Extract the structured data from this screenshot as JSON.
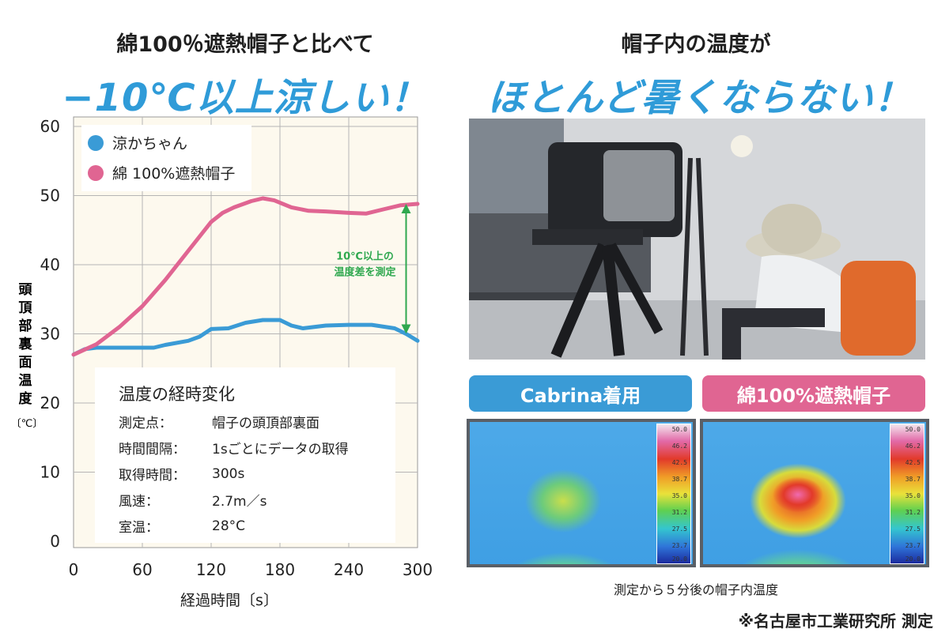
{
  "left_heading": {
    "line1": "綿100％遮熱帽子と比べて",
    "line2": "−10℃以上涼しい！"
  },
  "right_heading": {
    "line1": "帽子内の温度が",
    "line2": "ほとんど暑くならない！"
  },
  "chart_data": {
    "type": "line",
    "xlabel": "経過時間〔s〕",
    "ylabel": "頭頂部裏面温度",
    "ylabel_unit": "〔℃〕",
    "xlim": [
      0,
      300
    ],
    "ylim": [
      0,
      60
    ],
    "xticks": [
      "0",
      "60",
      "120",
      "180",
      "240",
      "300"
    ],
    "yticks": [
      "0",
      "10",
      "20",
      "30",
      "40",
      "50",
      "60"
    ],
    "grid": true,
    "legend_position": "top-left",
    "series": [
      {
        "name": "涼かちゃん",
        "color": "#3a9bd6",
        "x": [
          0,
          10,
          20,
          40,
          60,
          70,
          80,
          100,
          110,
          120,
          135,
          150,
          165,
          180,
          190,
          200,
          220,
          240,
          260,
          280,
          290,
          300
        ],
        "y": [
          27,
          27.8,
          28,
          28,
          28,
          28,
          28.4,
          29,
          29.6,
          30.7,
          30.8,
          31.6,
          32,
          32,
          31.2,
          30.8,
          31.2,
          31.3,
          31.3,
          30.8,
          30,
          29
        ]
      },
      {
        "name": "綿 100%遮熱帽子",
        "color": "#e06592",
        "x": [
          0,
          20,
          40,
          60,
          80,
          100,
          120,
          130,
          140,
          155,
          165,
          175,
          190,
          205,
          220,
          240,
          255,
          270,
          285,
          300
        ],
        "y": [
          27,
          28.5,
          31,
          34,
          37.8,
          42,
          46.2,
          47.5,
          48.3,
          49.2,
          49.6,
          49.3,
          48.3,
          47.8,
          47.7,
          47.5,
          47.4,
          48,
          48.6,
          48.8
        ]
      }
    ],
    "annotation": {
      "line1": "10℃以上の",
      "line2": "温度差を測定",
      "x": 290,
      "y_top": 48.8,
      "y_bottom": 30
    }
  },
  "info_box": {
    "title": "温度の経時変化",
    "rows": [
      {
        "key": "測定点：",
        "value": "帽子の頭頂部裏面"
      },
      {
        "key": "時間間隔：",
        "value": "1sごとにデータの取得"
      },
      {
        "key": "取得時間：",
        "value": "300s"
      },
      {
        "key": "風速：",
        "value": "2.7m／s"
      },
      {
        "key": "室温：",
        "value": "28°C"
      }
    ]
  },
  "thermal_labels": {
    "left": "Cabrina着用",
    "right": "綿100%遮熱帽子",
    "left_color": "#3a9bd6",
    "right_color": "#e06592"
  },
  "thermal_scale": [
    "50.0",
    "46.2",
    "42.5",
    "38.7",
    "35.0",
    "31.2",
    "27.5",
    "23.7",
    "20.0"
  ],
  "caption": "測定から５分後の帽子内温度",
  "source": "※名古屋市工業研究所 測定"
}
